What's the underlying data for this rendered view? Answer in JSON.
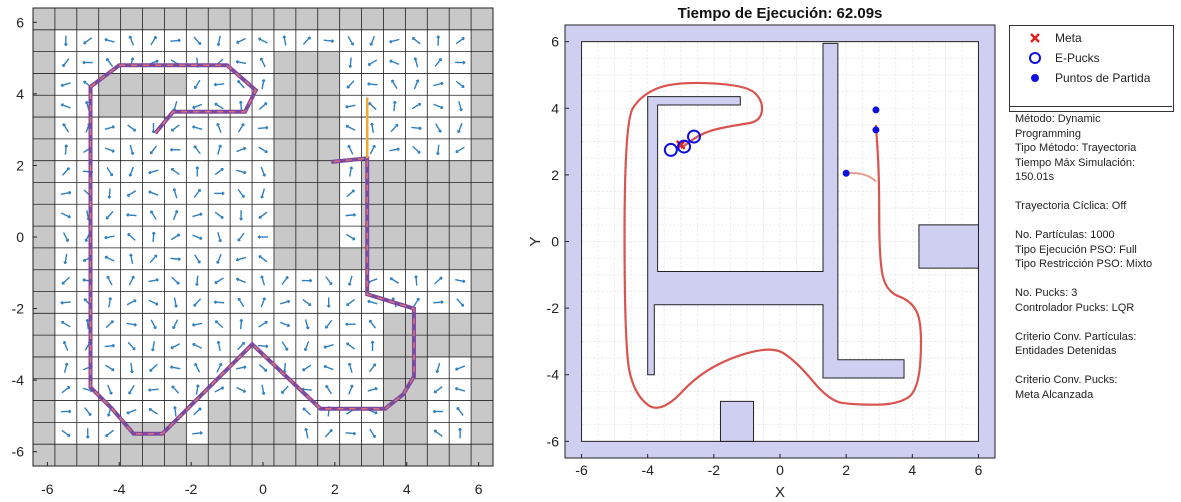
{
  "left_plot": {
    "ticks_x": [
      "-6",
      "-4",
      "-2",
      "0",
      "2",
      "4",
      "6"
    ],
    "ticks_y": [
      "6",
      "4",
      "2",
      "0",
      "-2",
      "-4",
      "-6"
    ]
  },
  "chart_data": [
    {
      "type": "line",
      "title": "",
      "xlim": [
        -6.4,
        6.4
      ],
      "ylim": [
        -6.4,
        6.4
      ],
      "grid": "cells",
      "path": {
        "x": [
          -3.0,
          -2.5,
          -2.0,
          -0.5,
          -0.2,
          -1.0,
          -4.0,
          -4.8,
          -4.8,
          -4.2,
          -3.6,
          -2.8,
          -1.0,
          -0.3,
          1.6,
          3.4,
          3.9,
          4.2,
          4.2,
          2.9,
          2.9,
          1.9
        ],
        "y": [
          2.9,
          3.5,
          3.5,
          3.5,
          4.1,
          4.8,
          4.8,
          4.2,
          -4.2,
          -4.8,
          -5.5,
          -5.5,
          -3.7,
          -3.0,
          -4.8,
          -4.8,
          -4.4,
          -3.9,
          -2.0,
          -1.6,
          2.2,
          2.1
        ]
      },
      "ticks_x": [
        "-6",
        "-4",
        "-2",
        "0",
        "2",
        "4",
        "6"
      ],
      "ticks_y": [
        "6",
        "4",
        "2",
        "0",
        "-2",
        "-4",
        "-6"
      ]
    },
    {
      "type": "line",
      "title": "Tiempo de Ejecución: 62.09s",
      "xlabel": "X",
      "ylabel": "Y",
      "xlim": [
        -6.5,
        6.5
      ],
      "ylim": [
        -6.5,
        6.5
      ],
      "grid": true,
      "xticks": [
        "-6",
        "-4",
        "-2",
        "0",
        "2",
        "4",
        "6"
      ],
      "yticks": [
        "6",
        "4",
        "2",
        "0",
        "-2",
        "-4",
        "-6"
      ],
      "obstacle_color": "#cfcff2",
      "path_color": "#d9534f",
      "path": {
        "x": [
          -3.0,
          -2.3,
          -1.3,
          -0.6,
          -0.5,
          -1.0,
          -3.2,
          -4.2,
          -4.7,
          -4.7,
          -4.4,
          -3.6,
          -2.3,
          -0.3,
          0.5,
          1.5,
          2.3,
          3.5,
          4.2,
          4.3,
          4.0,
          3.2,
          3.0,
          3.0,
          2.9
        ],
        "y": [
          2.8,
          3.3,
          3.5,
          3.6,
          4.2,
          4.7,
          4.8,
          4.4,
          3.6,
          -3.2,
          -4.6,
          -5.2,
          -3.8,
          -3.1,
          -3.6,
          -4.8,
          -4.9,
          -4.9,
          -4.5,
          -2.5,
          -1.8,
          -1.5,
          -0.5,
          2.0,
          3.5
        ]
      },
      "goal": {
        "x": -3.0,
        "y": 2.9
      },
      "epucks": [
        {
          "x": -3.3,
          "y": 2.75
        },
        {
          "x": -2.9,
          "y": 2.85
        },
        {
          "x": -2.6,
          "y": 3.15
        }
      ],
      "start_points": [
        {
          "x": 2.9,
          "y": 3.95
        },
        {
          "x": 2.9,
          "y": 3.35
        },
        {
          "x": 2.0,
          "y": 2.05
        }
      ],
      "legend": {
        "placement": "right",
        "items": [
          {
            "label": "Meta",
            "color": "#e02020",
            "marker": "x"
          },
          {
            "label": "E-Pucks",
            "color": "#1010e0",
            "marker": "circle-open"
          },
          {
            "label": "Puntos de Partida",
            "color": "#1010e0",
            "marker": "circle-filled"
          }
        ]
      }
    }
  ],
  "info_panel": [
    "Método: Dynamic",
    "Programming",
    "Tipo Método: Trayectoria",
    "Tiempo Máx Simulación:",
    "150.01s",
    "",
    "Trayectoria Cíclica: Off",
    "",
    "No. Partículas: 1000",
    "Tipo Ejecución PSO: Full",
    "Tipo Restricción PSO: Mixto",
    "",
    "No. Pucks: 3",
    "Controlador Pucks: LQR",
    "",
    "Criterio Conv. Partículas:",
    "Entidades Detenidas",
    "",
    "Criterio Conv. Pucks:",
    "Meta Alcanzada"
  ]
}
